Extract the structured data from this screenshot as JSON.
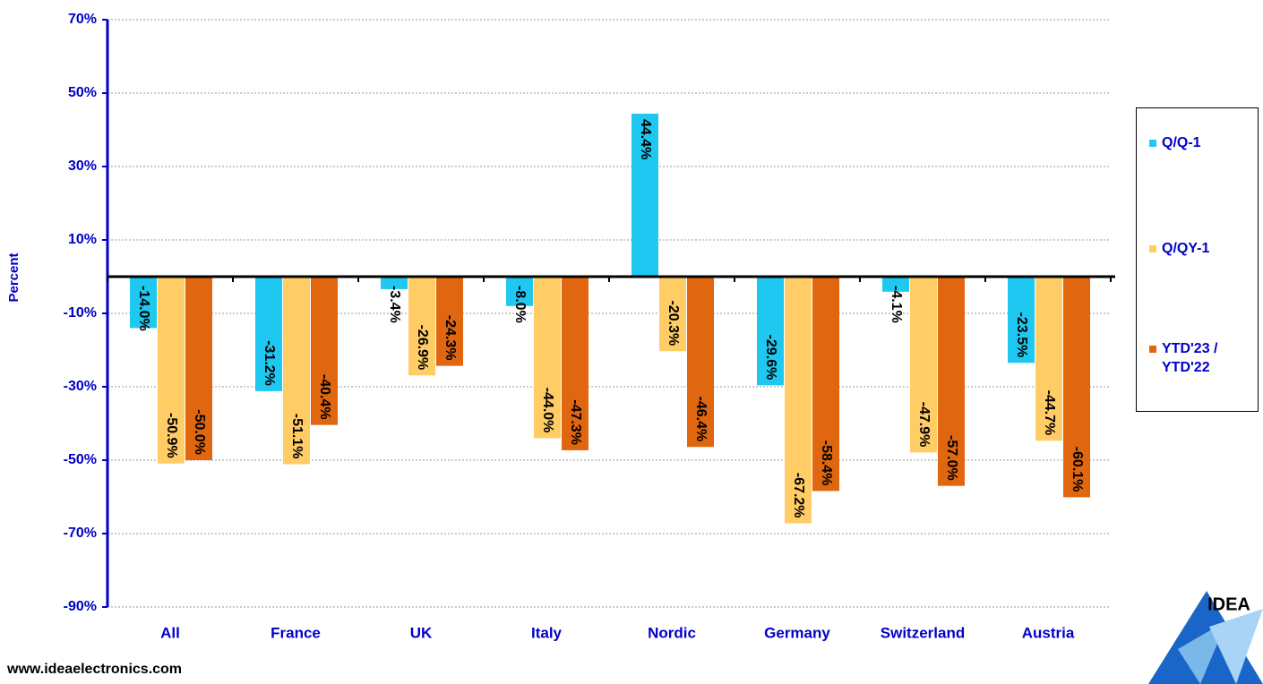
{
  "chart_data": {
    "type": "bar",
    "y_axis_label": "Percent",
    "categories": [
      "All",
      "France",
      "UK",
      "Italy",
      "Nordic",
      "Germany",
      "Switzerland",
      "Austria"
    ],
    "series": [
      {
        "name": "Q/Q-1",
        "color": "#1ec8f0",
        "values": [
          -14.0,
          -31.2,
          -3.4,
          -8.0,
          44.4,
          -29.6,
          -4.1,
          -23.5
        ],
        "value_labels": [
          "-14.0%",
          "-31.2%",
          "-3.4%",
          "-8.0%",
          "44.4%",
          "-29.6%",
          "-4.1%",
          "-23.5%"
        ]
      },
      {
        "name": "Q/QY-1",
        "color": "#ffcc66",
        "values": [
          -50.9,
          -51.1,
          -26.9,
          -44.0,
          -20.3,
          -67.2,
          -47.9,
          -44.7
        ],
        "value_labels": [
          "-50.9%",
          "-51.1%",
          "-26.9%",
          "-44.0%",
          "-20.3%",
          "-67.2%",
          "-47.9%",
          "-44.7%"
        ]
      },
      {
        "name": "YTD'23 / YTD'22",
        "color": "#e0660f",
        "values": [
          -50.0,
          -40.4,
          -24.3,
          -47.3,
          -46.4,
          -58.4,
          -57.0,
          -60.1
        ],
        "value_labels": [
          "-50.0%",
          "-40.4%",
          "-24.3%",
          "-47.3%",
          "-46.4%",
          "-58.4%",
          "-57.0%",
          "-60.1%"
        ]
      }
    ],
    "ylim": [
      -90,
      70
    ],
    "yticks": [
      {
        "value": 70,
        "label": "70%"
      },
      {
        "value": 50,
        "label": "50%"
      },
      {
        "value": 30,
        "label": "30%"
      },
      {
        "value": 10,
        "label": "10%"
      },
      {
        "value": -10,
        "label": "-10%"
      },
      {
        "value": -30,
        "label": "-30%"
      },
      {
        "value": -50,
        "label": "-50%"
      },
      {
        "value": -70,
        "label": "-70%"
      },
      {
        "value": -90,
        "label": "-90%"
      }
    ],
    "grid": true,
    "legend": "right"
  },
  "footer": "www.ideaelectronics.com",
  "logo": "IDEA"
}
